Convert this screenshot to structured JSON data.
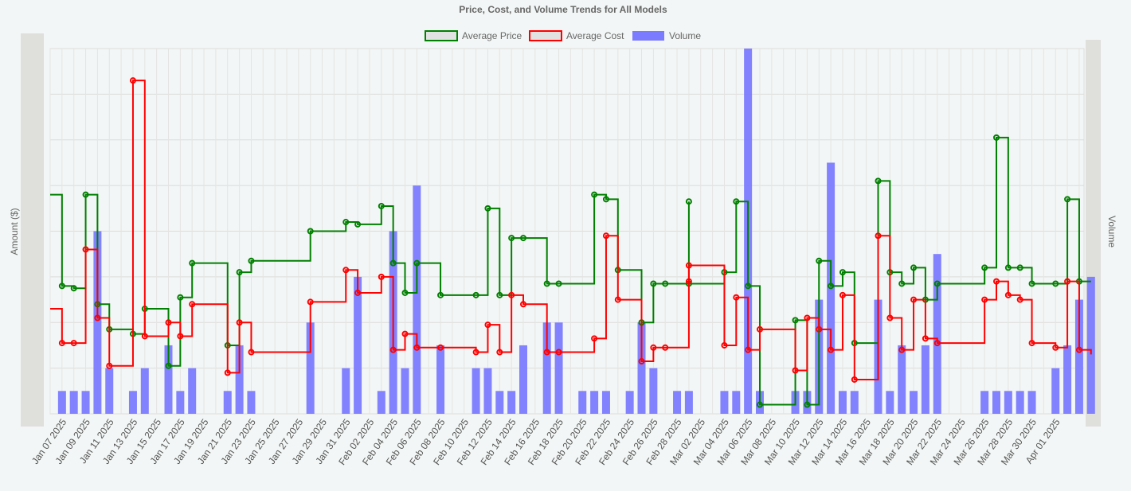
{
  "chart_data": {
    "type": "line",
    "title": "Price, Cost, and Volume Trends for All Models",
    "ylabel": "Amount ($)",
    "y2label": "Volume",
    "legend_position": "top",
    "grid": true,
    "x_tick_labels": [
      "Jan 07 2025",
      "Jan 09 2025",
      "Jan 11 2025",
      "Jan 13 2025",
      "Jan 15 2025",
      "Jan 17 2025",
      "Jan 19 2025",
      "Jan 21 2025",
      "Jan 23 2025",
      "Jan 25 2025",
      "Jan 27 2025",
      "Jan 29 2025",
      "Jan 31 2025",
      "Feb 02 2025",
      "Feb 04 2025",
      "Feb 06 2025",
      "Feb 08 2025",
      "Feb 10 2025",
      "Feb 12 2025",
      "Feb 14 2025",
      "Feb 16 2025",
      "Feb 18 2025",
      "Feb 20 2025",
      "Feb 22 2025",
      "Feb 24 2025",
      "Feb 26 2025",
      "Feb 28 2025",
      "Mar 02 2025",
      "Mar 04 2025",
      "Mar 06 2025",
      "Mar 08 2025",
      "Mar 10 2025",
      "Mar 12 2025",
      "Mar 14 2025",
      "Mar 16 2025",
      "Mar 18 2025",
      "Mar 20 2025",
      "Mar 22 2025",
      "Mar 24 2025",
      "Mar 26 2025",
      "Mar 28 2025",
      "Mar 30 2025",
      "Apr 01 2025"
    ],
    "x_range": [
      "2025-01-06",
      "2025-04-03"
    ],
    "y_range": [
      0,
      8
    ],
    "y2_range": [
      0,
      16
    ],
    "series": [
      {
        "name": "Average Price",
        "kind": "step-line",
        "color": "#008000",
        "points": [
          [
            "2025-01-06",
            4.8
          ],
          [
            "2025-01-07",
            2.8
          ],
          [
            "2025-01-08",
            2.75
          ],
          [
            "2025-01-09",
            4.8
          ],
          [
            "2025-01-10",
            2.4
          ],
          [
            "2025-01-11",
            1.85
          ],
          [
            "2025-01-13",
            1.75
          ],
          [
            "2025-01-14",
            2.3
          ],
          [
            "2025-01-16",
            1.05
          ],
          [
            "2025-01-17",
            2.55
          ],
          [
            "2025-01-18",
            3.3
          ],
          [
            "2025-01-21",
            1.5
          ],
          [
            "2025-01-22",
            3.1
          ],
          [
            "2025-01-23",
            3.35
          ],
          [
            "2025-01-28",
            4.0
          ],
          [
            "2025-01-31",
            4.2
          ],
          [
            "2025-02-01",
            4.15
          ],
          [
            "2025-02-03",
            4.55
          ],
          [
            "2025-02-04",
            3.3
          ],
          [
            "2025-02-05",
            2.65
          ],
          [
            "2025-02-06",
            3.3
          ],
          [
            "2025-02-08",
            2.6
          ],
          [
            "2025-02-11",
            2.6
          ],
          [
            "2025-02-12",
            4.5
          ],
          [
            "2025-02-13",
            2.6
          ],
          [
            "2025-02-14",
            3.85
          ],
          [
            "2025-02-15",
            3.85
          ],
          [
            "2025-02-17",
            2.85
          ],
          [
            "2025-02-18",
            2.85
          ],
          [
            "2025-02-21",
            4.8
          ],
          [
            "2025-02-22",
            4.7
          ],
          [
            "2025-02-23",
            3.15
          ],
          [
            "2025-02-25",
            2.0
          ],
          [
            "2025-02-26",
            2.85
          ],
          [
            "2025-02-27",
            2.85
          ],
          [
            "2025-02-29",
            4.65
          ],
          [
            "2025-03-01",
            2.85
          ],
          [
            "2025-03-04",
            3.1
          ],
          [
            "2025-03-05",
            4.65
          ],
          [
            "2025-03-06",
            2.8
          ],
          [
            "2025-03-07",
            0.2
          ],
          [
            "2025-03-10",
            2.05
          ],
          [
            "2025-03-11",
            0.2
          ],
          [
            "2025-03-12",
            3.35
          ],
          [
            "2025-03-13",
            2.8
          ],
          [
            "2025-03-14",
            3.1
          ],
          [
            "2025-03-15",
            1.55
          ],
          [
            "2025-03-17",
            5.1
          ],
          [
            "2025-03-18",
            3.1
          ],
          [
            "2025-03-19",
            2.85
          ],
          [
            "2025-03-20",
            3.2
          ],
          [
            "2025-03-21",
            2.5
          ],
          [
            "2025-03-22",
            2.85
          ],
          [
            "2025-03-26",
            3.2
          ],
          [
            "2025-03-27",
            6.05
          ],
          [
            "2025-03-28",
            3.2
          ],
          [
            "2025-03-29",
            3.2
          ],
          [
            "2025-03-30",
            2.85
          ],
          [
            "2025-04-01",
            2.85
          ],
          [
            "2025-04-02",
            4.7
          ],
          [
            "2025-04-03",
            2.9
          ],
          [
            "2025-04-04",
            2.9
          ]
        ]
      },
      {
        "name": "Average Cost",
        "kind": "step-line",
        "color": "#ff0000",
        "points": [
          [
            "2025-01-06",
            2.3
          ],
          [
            "2025-01-07",
            1.55
          ],
          [
            "2025-01-08",
            1.55
          ],
          [
            "2025-01-09",
            3.6
          ],
          [
            "2025-01-10",
            2.1
          ],
          [
            "2025-01-11",
            1.05
          ],
          [
            "2025-01-13",
            7.3
          ],
          [
            "2025-01-14",
            1.7
          ],
          [
            "2025-01-16",
            2.0
          ],
          [
            "2025-01-17",
            1.7
          ],
          [
            "2025-01-18",
            2.4
          ],
          [
            "2025-01-21",
            0.9
          ],
          [
            "2025-01-22",
            2.0
          ],
          [
            "2025-01-23",
            1.35
          ],
          [
            "2025-01-28",
            2.45
          ],
          [
            "2025-01-31",
            3.15
          ],
          [
            "2025-02-01",
            2.65
          ],
          [
            "2025-02-03",
            3.0
          ],
          [
            "2025-02-04",
            1.4
          ],
          [
            "2025-02-05",
            1.75
          ],
          [
            "2025-02-06",
            1.45
          ],
          [
            "2025-02-08",
            1.45
          ],
          [
            "2025-02-11",
            1.35
          ],
          [
            "2025-02-12",
            1.95
          ],
          [
            "2025-02-13",
            1.35
          ],
          [
            "2025-02-14",
            2.6
          ],
          [
            "2025-02-15",
            2.4
          ],
          [
            "2025-02-17",
            1.35
          ],
          [
            "2025-02-18",
            1.35
          ],
          [
            "2025-02-21",
            1.65
          ],
          [
            "2025-02-22",
            3.9
          ],
          [
            "2025-02-23",
            2.5
          ],
          [
            "2025-02-25",
            1.15
          ],
          [
            "2025-02-26",
            1.45
          ],
          [
            "2025-02-27",
            1.45
          ],
          [
            "2025-02-29",
            2.9
          ],
          [
            "2025-03-01",
            3.25
          ],
          [
            "2025-03-04",
            1.5
          ],
          [
            "2025-03-05",
            2.55
          ],
          [
            "2025-03-06",
            1.4
          ],
          [
            "2025-03-07",
            1.85
          ],
          [
            "2025-03-10",
            0.95
          ],
          [
            "2025-03-11",
            2.1
          ],
          [
            "2025-03-12",
            1.85
          ],
          [
            "2025-03-13",
            1.4
          ],
          [
            "2025-03-14",
            2.6
          ],
          [
            "2025-03-15",
            0.75
          ],
          [
            "2025-03-17",
            3.9
          ],
          [
            "2025-03-18",
            2.1
          ],
          [
            "2025-03-19",
            1.4
          ],
          [
            "2025-03-20",
            2.5
          ],
          [
            "2025-03-21",
            1.65
          ],
          [
            "2025-03-22",
            1.55
          ],
          [
            "2025-03-26",
            2.5
          ],
          [
            "2025-03-27",
            2.9
          ],
          [
            "2025-03-28",
            2.6
          ],
          [
            "2025-03-29",
            2.5
          ],
          [
            "2025-03-30",
            1.55
          ],
          [
            "2025-04-01",
            1.45
          ],
          [
            "2025-04-02",
            2.9
          ],
          [
            "2025-04-03",
            1.4
          ],
          [
            "2025-04-04",
            1.3
          ]
        ]
      },
      {
        "name": "Volume",
        "kind": "bar",
        "axis": "right",
        "color": "#7b7bff",
        "points": [
          [
            "2025-01-07",
            1
          ],
          [
            "2025-01-08",
            1
          ],
          [
            "2025-01-09",
            1
          ],
          [
            "2025-01-10",
            8
          ],
          [
            "2025-01-11",
            2
          ],
          [
            "2025-01-13",
            1
          ],
          [
            "2025-01-14",
            2
          ],
          [
            "2025-01-16",
            3
          ],
          [
            "2025-01-17",
            1
          ],
          [
            "2025-01-18",
            2
          ],
          [
            "2025-01-21",
            1
          ],
          [
            "2025-01-22",
            3
          ],
          [
            "2025-01-23",
            1
          ],
          [
            "2025-01-28",
            4
          ],
          [
            "2025-01-31",
            2
          ],
          [
            "2025-02-01",
            6
          ],
          [
            "2025-02-03",
            1
          ],
          [
            "2025-02-04",
            8
          ],
          [
            "2025-02-05",
            2
          ],
          [
            "2025-02-06",
            10
          ],
          [
            "2025-02-08",
            3
          ],
          [
            "2025-02-11",
            2
          ],
          [
            "2025-02-12",
            2
          ],
          [
            "2025-02-13",
            1
          ],
          [
            "2025-02-14",
            1
          ],
          [
            "2025-02-15",
            3
          ],
          [
            "2025-02-17",
            4
          ],
          [
            "2025-02-18",
            4
          ],
          [
            "2025-02-20",
            1
          ],
          [
            "2025-02-21",
            1
          ],
          [
            "2025-02-22",
            1
          ],
          [
            "2025-02-24",
            1
          ],
          [
            "2025-02-25",
            4
          ],
          [
            "2025-02-26",
            2
          ],
          [
            "2025-02-28",
            1
          ],
          [
            "2025-02-29",
            1
          ],
          [
            "2025-03-04",
            1
          ],
          [
            "2025-03-05",
            1
          ],
          [
            "2025-03-06",
            16
          ],
          [
            "2025-03-07",
            1
          ],
          [
            "2025-03-10",
            1
          ],
          [
            "2025-03-11",
            1
          ],
          [
            "2025-03-12",
            5
          ],
          [
            "2025-03-13",
            11
          ],
          [
            "2025-03-14",
            1
          ],
          [
            "2025-03-15",
            1
          ],
          [
            "2025-03-17",
            5
          ],
          [
            "2025-03-18",
            1
          ],
          [
            "2025-03-19",
            3
          ],
          [
            "2025-03-20",
            1
          ],
          [
            "2025-03-21",
            3
          ],
          [
            "2025-03-22",
            7
          ],
          [
            "2025-03-26",
            1
          ],
          [
            "2025-03-27",
            1
          ],
          [
            "2025-03-28",
            1
          ],
          [
            "2025-03-29",
            1
          ],
          [
            "2025-03-30",
            1
          ],
          [
            "2025-04-01",
            2
          ],
          [
            "2025-04-02",
            3
          ],
          [
            "2025-04-03",
            5
          ],
          [
            "2025-04-04",
            6
          ]
        ]
      }
    ]
  }
}
